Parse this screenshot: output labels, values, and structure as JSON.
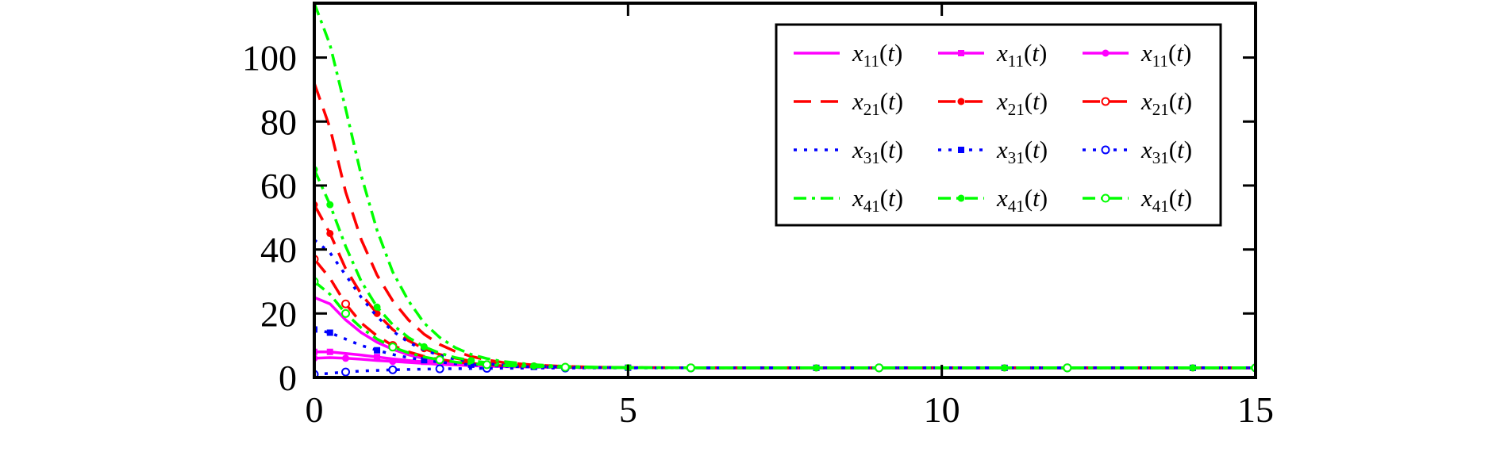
{
  "chart_data": {
    "type": "line",
    "title": "",
    "xlabel": "",
    "ylabel": "",
    "xlim": [
      0,
      15
    ],
    "ylim": [
      0,
      117
    ],
    "xticks": [
      0,
      5,
      10,
      15
    ],
    "yticks": [
      0,
      20,
      40,
      60,
      80,
      100
    ],
    "x_tick_labels": [
      "0",
      "5",
      "10",
      "15"
    ],
    "y_tick_labels": [
      "0",
      "20",
      "40",
      "60",
      "80",
      "100"
    ],
    "grid": false,
    "legend_position": "top-right",
    "legend_columns": 3,
    "converged_value": 3.0,
    "x": [
      0,
      0.25,
      0.5,
      0.75,
      1,
      1.25,
      1.5,
      1.75,
      2,
      2.25,
      2.5,
      2.75,
      3,
      3.5,
      4,
      4.5,
      5,
      6,
      7,
      8,
      9,
      10,
      11,
      12,
      13,
      14,
      15
    ],
    "series": [
      {
        "name": "x11(t)",
        "base": "x",
        "sub": "11",
        "paren": "(t)",
        "color": "#ff00ff",
        "dash": "solid",
        "marker": "none",
        "values": [
          25,
          23,
          18,
          14,
          11,
          8.8,
          7.1,
          5.9,
          5.0,
          4.4,
          4.0,
          3.7,
          3.5,
          3.3,
          3.15,
          3.1,
          3.05,
          3.02,
          3.0,
          3.0,
          3.0,
          3.0,
          3.0,
          3.0,
          3.0,
          3.0,
          3.0
        ]
      },
      {
        "name": "x11(t)",
        "base": "x",
        "sub": "11",
        "paren": "(t)",
        "color": "#ff00ff",
        "dash": "solid",
        "marker": "square",
        "values": [
          8.0,
          8.0,
          7.5,
          7.0,
          6.4,
          5.8,
          5.3,
          4.9,
          4.5,
          4.2,
          4.0,
          3.8,
          3.6,
          3.4,
          3.2,
          3.1,
          3.05,
          3.02,
          3.0,
          3.0,
          3.0,
          3.0,
          3.0,
          3.0,
          3.0,
          3.0,
          3.0
        ]
      },
      {
        "name": "x11(t)",
        "base": "x",
        "sub": "11",
        "paren": "(t)",
        "color": "#ff00ff",
        "dash": "solid",
        "marker": "circle-filled",
        "values": [
          6.0,
          6.2,
          6.0,
          5.7,
          5.3,
          5.0,
          4.7,
          4.4,
          4.1,
          3.9,
          3.7,
          3.5,
          3.4,
          3.25,
          3.15,
          3.1,
          3.05,
          3.02,
          3.0,
          3.0,
          3.0,
          3.0,
          3.0,
          3.0,
          3.0,
          3.0,
          3.0
        ]
      },
      {
        "name": "x21(t)",
        "base": "x",
        "sub": "21",
        "paren": "(t)",
        "color": "#ff0000",
        "dash": "dashed",
        "marker": "none",
        "values": [
          92,
          78,
          58,
          43,
          32,
          24,
          18,
          13.5,
          10.3,
          8.1,
          6.6,
          5.5,
          4.7,
          3.9,
          3.45,
          3.2,
          3.1,
          3.03,
          3.0,
          3.0,
          3.0,
          3.0,
          3.0,
          3.0,
          3.0,
          3.0,
          3.0
        ]
      },
      {
        "name": "x21(t)",
        "base": "x",
        "sub": "21",
        "paren": "(t)",
        "color": "#ff0000",
        "dash": "dashed",
        "marker": "circle-filled",
        "values": [
          54,
          45,
          34,
          26,
          20,
          15,
          11.5,
          9.0,
          7.2,
          6.0,
          5.1,
          4.5,
          4.1,
          3.6,
          3.3,
          3.15,
          3.08,
          3.02,
          3.0,
          3.0,
          3.0,
          3.0,
          3.0,
          3.0,
          3.0,
          3.0,
          3.0
        ]
      },
      {
        "name": "x21(t)",
        "base": "x",
        "sub": "21",
        "paren": "(t)",
        "color": "#ff0000",
        "dash": "dashed",
        "marker": "circle-open",
        "values": [
          37,
          31,
          23,
          17,
          13,
          10,
          8.0,
          6.6,
          5.6,
          4.9,
          4.4,
          4.0,
          3.7,
          3.4,
          3.2,
          3.1,
          3.05,
          3.02,
          3.0,
          3.0,
          3.0,
          3.0,
          3.0,
          3.0,
          3.0,
          3.0,
          3.0
        ]
      },
      {
        "name": "x31(t)",
        "base": "x",
        "sub": "31",
        "paren": "(t)",
        "color": "#0000ff",
        "dash": "dotted",
        "marker": "none",
        "values": [
          43,
          39,
          32,
          25,
          19,
          14.5,
          11,
          8.6,
          6.9,
          5.7,
          4.9,
          4.3,
          3.9,
          3.5,
          3.25,
          3.12,
          3.06,
          3.02,
          3.0,
          3.0,
          3.0,
          3.0,
          3.0,
          3.0,
          3.0,
          3.0,
          3.0
        ]
      },
      {
        "name": "x31(t)",
        "base": "x",
        "sub": "31",
        "paren": "(t)",
        "color": "#0000ff",
        "dash": "dotted",
        "marker": "square",
        "values": [
          15,
          14,
          12,
          10,
          8.5,
          7.2,
          6.2,
          5.4,
          4.8,
          4.3,
          4.0,
          3.7,
          3.5,
          3.3,
          3.15,
          3.08,
          3.04,
          3.01,
          3.0,
          3.0,
          3.0,
          3.0,
          3.0,
          3.0,
          3.0,
          3.0,
          3.0
        ]
      },
      {
        "name": "x31(t)",
        "base": "x",
        "sub": "31",
        "paren": "(t)",
        "color": "#0000ff",
        "dash": "dotted",
        "marker": "circle-open",
        "values": [
          1.0,
          1.3,
          1.7,
          2.0,
          2.2,
          2.4,
          2.5,
          2.6,
          2.7,
          2.75,
          2.8,
          2.85,
          2.88,
          2.92,
          2.95,
          2.97,
          2.98,
          2.99,
          3.0,
          3.0,
          3.0,
          3.0,
          3.0,
          3.0,
          3.0,
          3.0,
          3.0
        ]
      },
      {
        "name": "x41(t)",
        "base": "x",
        "sub": "41",
        "paren": "(t)",
        "color": "#00ff00",
        "dash": "dashdot",
        "marker": "none",
        "values": [
          117,
          104,
          84,
          63,
          46,
          33,
          24,
          17,
          12.5,
          9.3,
          7.2,
          5.9,
          5.0,
          4.0,
          3.5,
          3.22,
          3.1,
          3.03,
          3.0,
          3.0,
          3.0,
          3.0,
          3.0,
          3.0,
          3.0,
          3.0,
          3.0
        ]
      },
      {
        "name": "x41(t)",
        "base": "x",
        "sub": "41",
        "paren": "(t)",
        "color": "#00ff00",
        "dash": "dashdot",
        "marker": "circle-filled",
        "values": [
          65,
          54,
          41,
          30,
          22,
          16.5,
          12.5,
          9.6,
          7.6,
          6.2,
          5.3,
          4.6,
          4.1,
          3.6,
          3.3,
          3.15,
          3.08,
          3.02,
          3.0,
          3.0,
          3.0,
          3.0,
          3.0,
          3.0,
          3.0,
          3.0,
          3.0
        ]
      },
      {
        "name": "x41(t)",
        "base": "x",
        "sub": "41",
        "paren": "(t)",
        "color": "#00ff00",
        "dash": "dashdot",
        "marker": "circle-open",
        "values": [
          30,
          26,
          20,
          15.5,
          12,
          9.5,
          7.7,
          6.4,
          5.5,
          4.8,
          4.3,
          4.0,
          3.7,
          3.4,
          3.2,
          3.1,
          3.05,
          3.02,
          3.0,
          3.0,
          3.0,
          3.0,
          3.0,
          3.0,
          3.0,
          3.0,
          3.0
        ]
      }
    ]
  }
}
